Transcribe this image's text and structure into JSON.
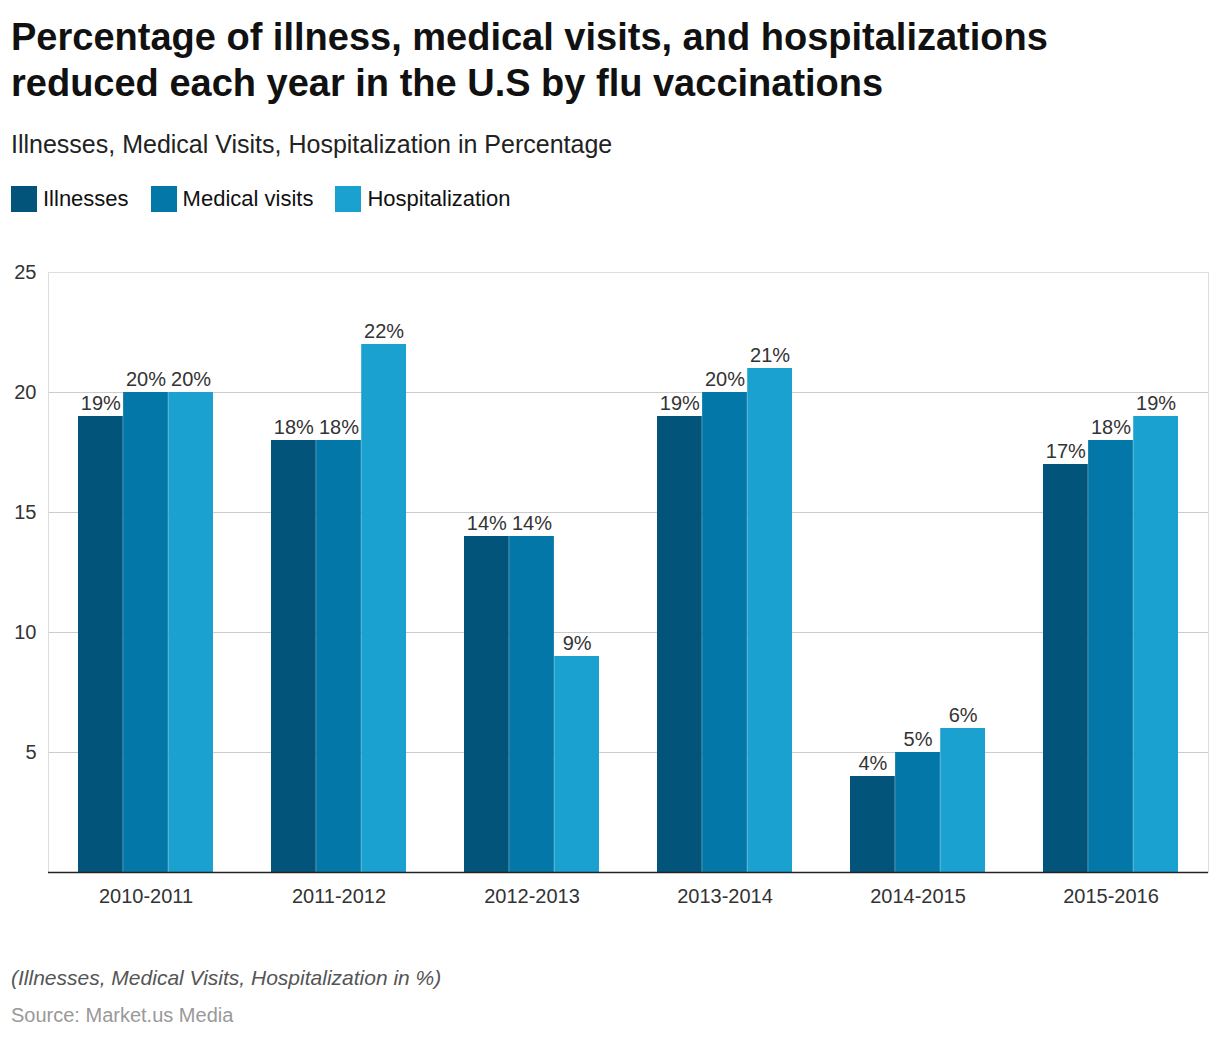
{
  "chart_data": {
    "type": "bar",
    "title": "Percentage of illness, medical visits, and hospitalizations reduced each year in the U.S by flu vaccinations",
    "subtitle": "Illnesses, Medical Visits, Hospitalization in Percentage",
    "caption": "(Illnesses, Medical Visits, Hospitalization in %)",
    "source": "Source: Market.us Media",
    "categories": [
      "2010-2011",
      "2011-2012",
      "2012-2013",
      "2013-2014",
      "2014-2015",
      "2015-2016"
    ],
    "series": [
      {
        "name": "Illnesses",
        "color": "#02547a",
        "values": [
          19,
          18,
          14,
          19,
          4,
          17
        ],
        "value_labels": [
          "19%",
          "18%",
          "14%",
          "19%",
          "4%",
          "17%"
        ]
      },
      {
        "name": "Medical visits",
        "color": "#0378a8",
        "values": [
          20,
          18,
          14,
          20,
          5,
          18
        ],
        "value_labels": [
          "20%",
          "18%",
          "14%",
          "20%",
          "5%",
          "18%"
        ]
      },
      {
        "name": "Hospitalization",
        "color": "#1aa1cf",
        "values": [
          20,
          22,
          9,
          21,
          6,
          19
        ],
        "value_labels": [
          "20%",
          "22%",
          "9%",
          "21%",
          "6%",
          "19%"
        ]
      }
    ],
    "ylim": [
      0,
      25
    ],
    "yticks": [
      5,
      10,
      15,
      20,
      25
    ],
    "grid": true,
    "legend": "top-left",
    "data_labels": true
  }
}
